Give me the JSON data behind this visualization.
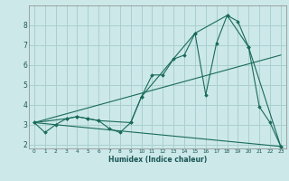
{
  "xlabel": "Humidex (Indice chaleur)",
  "bg_color": "#cce8e8",
  "grid_color": "#aacfcf",
  "line_color": "#1a6b5a",
  "xlim": [
    -0.5,
    23.5
  ],
  "ylim": [
    1.8,
    9.0
  ],
  "yticks": [
    2,
    3,
    4,
    5,
    6,
    7,
    8
  ],
  "xticks": [
    0,
    1,
    2,
    3,
    4,
    5,
    6,
    7,
    8,
    9,
    10,
    11,
    12,
    13,
    14,
    15,
    16,
    17,
    18,
    19,
    20,
    21,
    22,
    23
  ],
  "line_main": {
    "x": [
      0,
      1,
      2,
      3,
      4,
      5,
      6,
      7,
      8,
      9,
      10,
      11,
      12,
      13,
      14,
      15,
      16,
      17,
      18,
      19,
      20,
      21,
      22,
      23
    ],
    "y": [
      3.1,
      2.6,
      3.0,
      3.3,
      3.4,
      3.3,
      3.2,
      2.8,
      2.6,
      3.1,
      4.4,
      5.5,
      5.5,
      6.3,
      6.5,
      7.6,
      4.5,
      7.1,
      8.5,
      8.2,
      6.9,
      3.9,
      3.1,
      1.9
    ]
  },
  "line_sparse": {
    "x": [
      0,
      3,
      4,
      5,
      6,
      9,
      10,
      15,
      18,
      20,
      23
    ],
    "y": [
      3.1,
      3.3,
      3.4,
      3.3,
      3.2,
      3.1,
      4.4,
      7.6,
      8.5,
      6.9,
      1.9
    ]
  },
  "line_diag_up": {
    "x": [
      0,
      23
    ],
    "y": [
      3.1,
      6.5
    ]
  },
  "line_diag_down": {
    "x": [
      0,
      23
    ],
    "y": [
      3.1,
      1.9
    ]
  }
}
